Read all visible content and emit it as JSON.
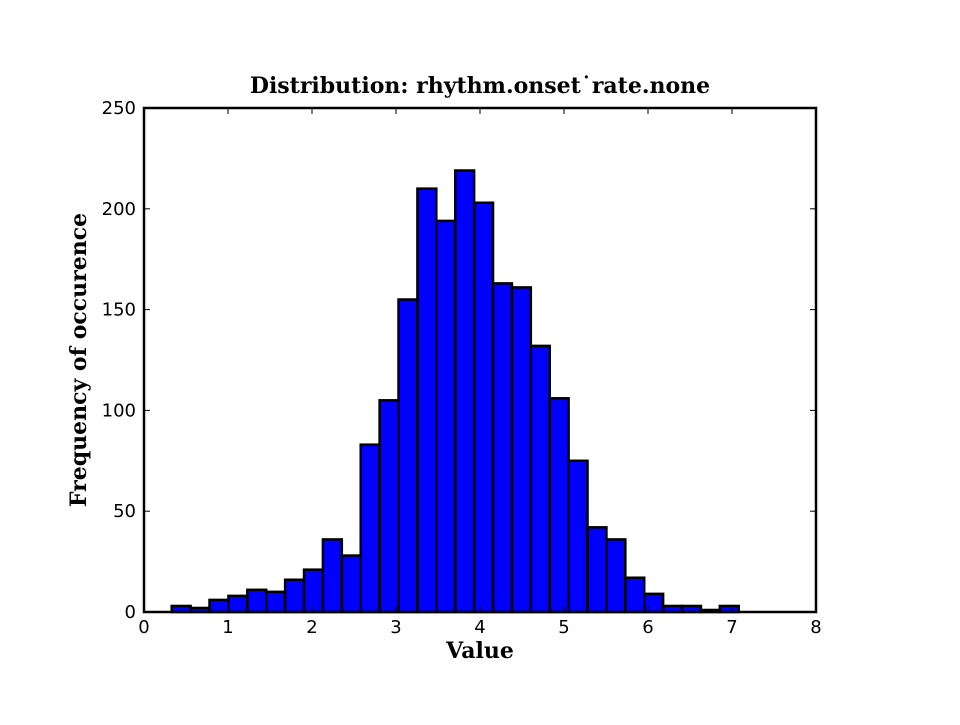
{
  "chart_data": {
    "type": "bar",
    "title": "Distribution: rhythm.onset˙rate.none",
    "xlabel": "Value",
    "ylabel": "Frequency of occurence",
    "xlim": [
      0,
      8
    ],
    "ylim": [
      0,
      250
    ],
    "xticks": [
      0,
      1,
      2,
      3,
      4,
      5,
      6,
      7,
      8
    ],
    "yticks": [
      0,
      50,
      100,
      150,
      200,
      250
    ],
    "bar_color": "#0000ff",
    "edge_color": "#000000",
    "grid": false,
    "legend": "none",
    "bin_width": 0.225,
    "bins": [
      {
        "x0": 0.33,
        "value": 3
      },
      {
        "x0": 0.555,
        "value": 2
      },
      {
        "x0": 0.78,
        "value": 6
      },
      {
        "x0": 1.005,
        "value": 8
      },
      {
        "x0": 1.23,
        "value": 11
      },
      {
        "x0": 1.455,
        "value": 10
      },
      {
        "x0": 1.68,
        "value": 16
      },
      {
        "x0": 1.905,
        "value": 21
      },
      {
        "x0": 2.13,
        "value": 36
      },
      {
        "x0": 2.355,
        "value": 28
      },
      {
        "x0": 2.58,
        "value": 83
      },
      {
        "x0": 2.805,
        "value": 105
      },
      {
        "x0": 3.03,
        "value": 155
      },
      {
        "x0": 3.255,
        "value": 210
      },
      {
        "x0": 3.48,
        "value": 194
      },
      {
        "x0": 3.705,
        "value": 219
      },
      {
        "x0": 3.93,
        "value": 203
      },
      {
        "x0": 4.155,
        "value": 163
      },
      {
        "x0": 4.38,
        "value": 161
      },
      {
        "x0": 4.605,
        "value": 132
      },
      {
        "x0": 4.83,
        "value": 106
      },
      {
        "x0": 5.055,
        "value": 75
      },
      {
        "x0": 5.28,
        "value": 42
      },
      {
        "x0": 5.505,
        "value": 36
      },
      {
        "x0": 5.73,
        "value": 17
      },
      {
        "x0": 5.955,
        "value": 9
      },
      {
        "x0": 6.18,
        "value": 3
      },
      {
        "x0": 6.405,
        "value": 3
      },
      {
        "x0": 6.63,
        "value": 1
      },
      {
        "x0": 6.855,
        "value": 3
      },
      {
        "x0": 7.08,
        "value": 0
      },
      {
        "x0": 7.305,
        "value": 0
      },
      {
        "x0": 7.53,
        "value": 0
      }
    ]
  }
}
